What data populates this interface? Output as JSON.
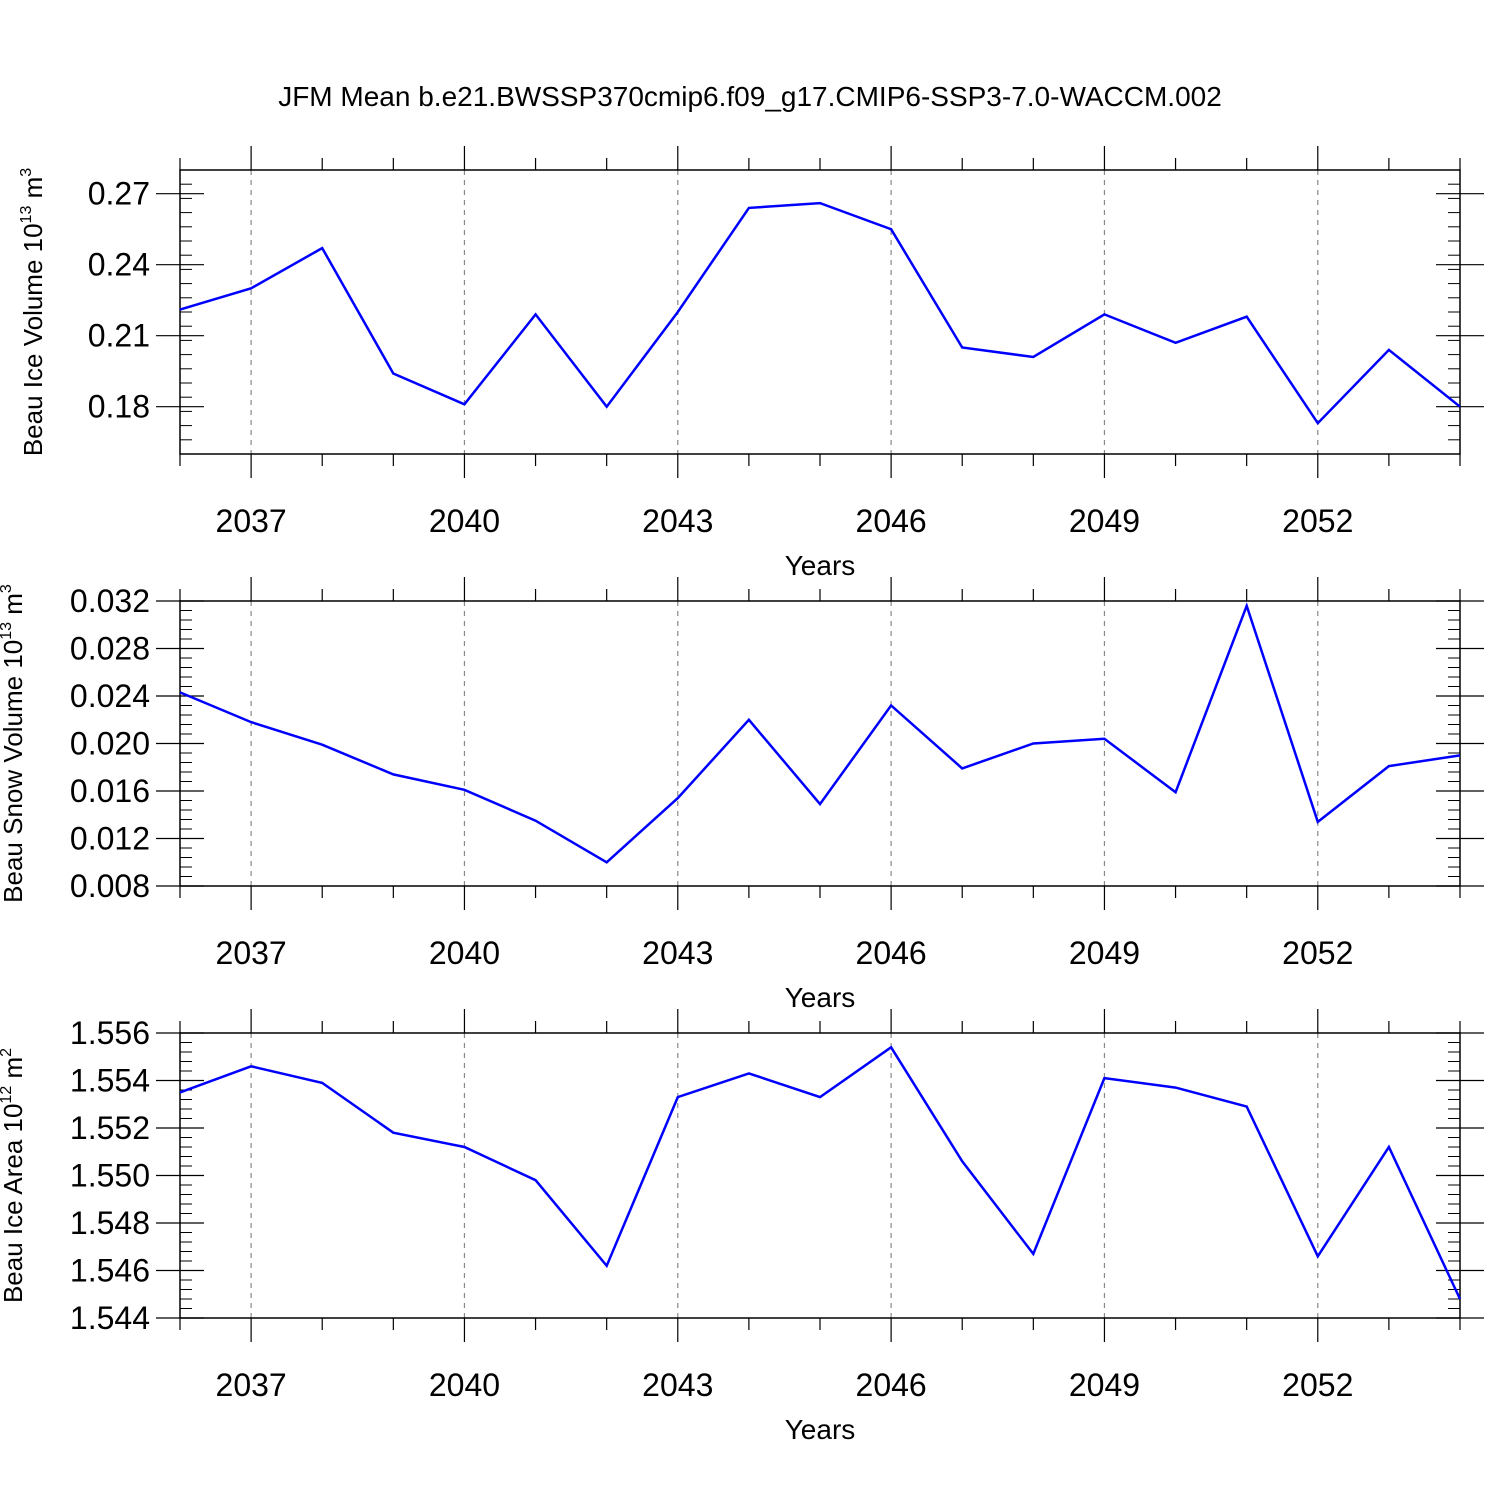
{
  "figure": {
    "title": "JFM Mean b.e21.BWSSP370cmip6.f09_g17.CMIP6-SSP3-7.0-WACCM.002",
    "line_color": "#0000ff"
  },
  "chart_data": [
    {
      "type": "line",
      "ylabel": "Beau Ice Volume",
      "ylabel_unit": "10",
      "ylabel_exp": "13",
      "ylabel_unit2": " m",
      "ylabel_exp2": "3",
      "xlabel": "Years",
      "xlim": [
        2036,
        2054
      ],
      "ylim": [
        0.16,
        0.28
      ],
      "x_ticks": [
        2037,
        2040,
        2043,
        2046,
        2049,
        2052
      ],
      "x_tick_labels": [
        "2037",
        "2040",
        "2043",
        "2046",
        "2049",
        "2052"
      ],
      "y_ticks": [
        0.18,
        0.21,
        0.24,
        0.27
      ],
      "y_tick_labels": [
        "0.18",
        "0.21",
        "0.24",
        "0.27"
      ],
      "y_minor_step": 0.006,
      "grid": "vertical dashed at labeled years",
      "series": [
        {
          "x": [
            2036,
            2037,
            2038,
            2039,
            2040,
            2041,
            2042,
            2043,
            2044,
            2045,
            2046,
            2047,
            2048,
            2049,
            2050,
            2051,
            2052,
            2053,
            2054
          ],
          "values": [
            0.221,
            0.23,
            0.247,
            0.194,
            0.181,
            0.219,
            0.18,
            0.22,
            0.264,
            0.266,
            0.255,
            0.205,
            0.201,
            0.219,
            0.207,
            0.218,
            0.173,
            0.204,
            0.18
          ]
        }
      ]
    },
    {
      "type": "line",
      "ylabel": "Beau Snow Volume",
      "ylabel_unit": "10",
      "ylabel_exp": "13",
      "ylabel_unit2": " m",
      "ylabel_exp2": "3",
      "xlabel": "Years",
      "xlim": [
        2036,
        2054
      ],
      "ylim": [
        0.008,
        0.032
      ],
      "x_ticks": [
        2037,
        2040,
        2043,
        2046,
        2049,
        2052
      ],
      "x_tick_labels": [
        "2037",
        "2040",
        "2043",
        "2046",
        "2049",
        "2052"
      ],
      "y_ticks": [
        0.008,
        0.012,
        0.016,
        0.02,
        0.024,
        0.028,
        0.032
      ],
      "y_tick_labels": [
        "0.008",
        "0.012",
        "0.016",
        "0.020",
        "0.024",
        "0.028",
        "0.032"
      ],
      "y_minor_step": 0.0008,
      "grid": "vertical dashed at labeled years",
      "series": [
        {
          "x": [
            2036,
            2037,
            2038,
            2039,
            2040,
            2041,
            2042,
            2043,
            2044,
            2045,
            2046,
            2047,
            2048,
            2049,
            2050,
            2051,
            2052,
            2053,
            2054
          ],
          "values": [
            0.0243,
            0.0218,
            0.0199,
            0.0174,
            0.0161,
            0.0135,
            0.01,
            0.0154,
            0.022,
            0.0149,
            0.0232,
            0.0179,
            0.02,
            0.0204,
            0.0159,
            0.0316,
            0.0134,
            0.0181,
            0.019
          ]
        }
      ]
    },
    {
      "type": "line",
      "ylabel": "Beau Ice Area",
      "ylabel_unit": "10",
      "ylabel_exp": "12",
      "ylabel_unit2": " m",
      "ylabel_exp2": "2",
      "xlabel": "Years",
      "xlim": [
        2036,
        2054
      ],
      "ylim": [
        1.544,
        1.556
      ],
      "x_ticks": [
        2037,
        2040,
        2043,
        2046,
        2049,
        2052
      ],
      "x_tick_labels": [
        "2037",
        "2040",
        "2043",
        "2046",
        "2049",
        "2052"
      ],
      "y_ticks": [
        1.544,
        1.546,
        1.548,
        1.55,
        1.552,
        1.554,
        1.556
      ],
      "y_tick_labels": [
        "1.544",
        "1.546",
        "1.548",
        "1.550",
        "1.552",
        "1.554",
        "1.556"
      ],
      "y_minor_step": 0.0004,
      "grid": "vertical dashed at labeled years",
      "series": [
        {
          "x": [
            2036,
            2037,
            2038,
            2039,
            2040,
            2041,
            2042,
            2043,
            2044,
            2045,
            2046,
            2047,
            2048,
            2049,
            2050,
            2051,
            2052,
            2053,
            2054
          ],
          "values": [
            1.5535,
            1.5546,
            1.5539,
            1.5518,
            1.5512,
            1.5498,
            1.5462,
            1.5533,
            1.5543,
            1.5533,
            1.5554,
            1.5506,
            1.5467,
            1.5541,
            1.5537,
            1.5529,
            1.5466,
            1.5512,
            1.5448
          ]
        }
      ]
    }
  ]
}
